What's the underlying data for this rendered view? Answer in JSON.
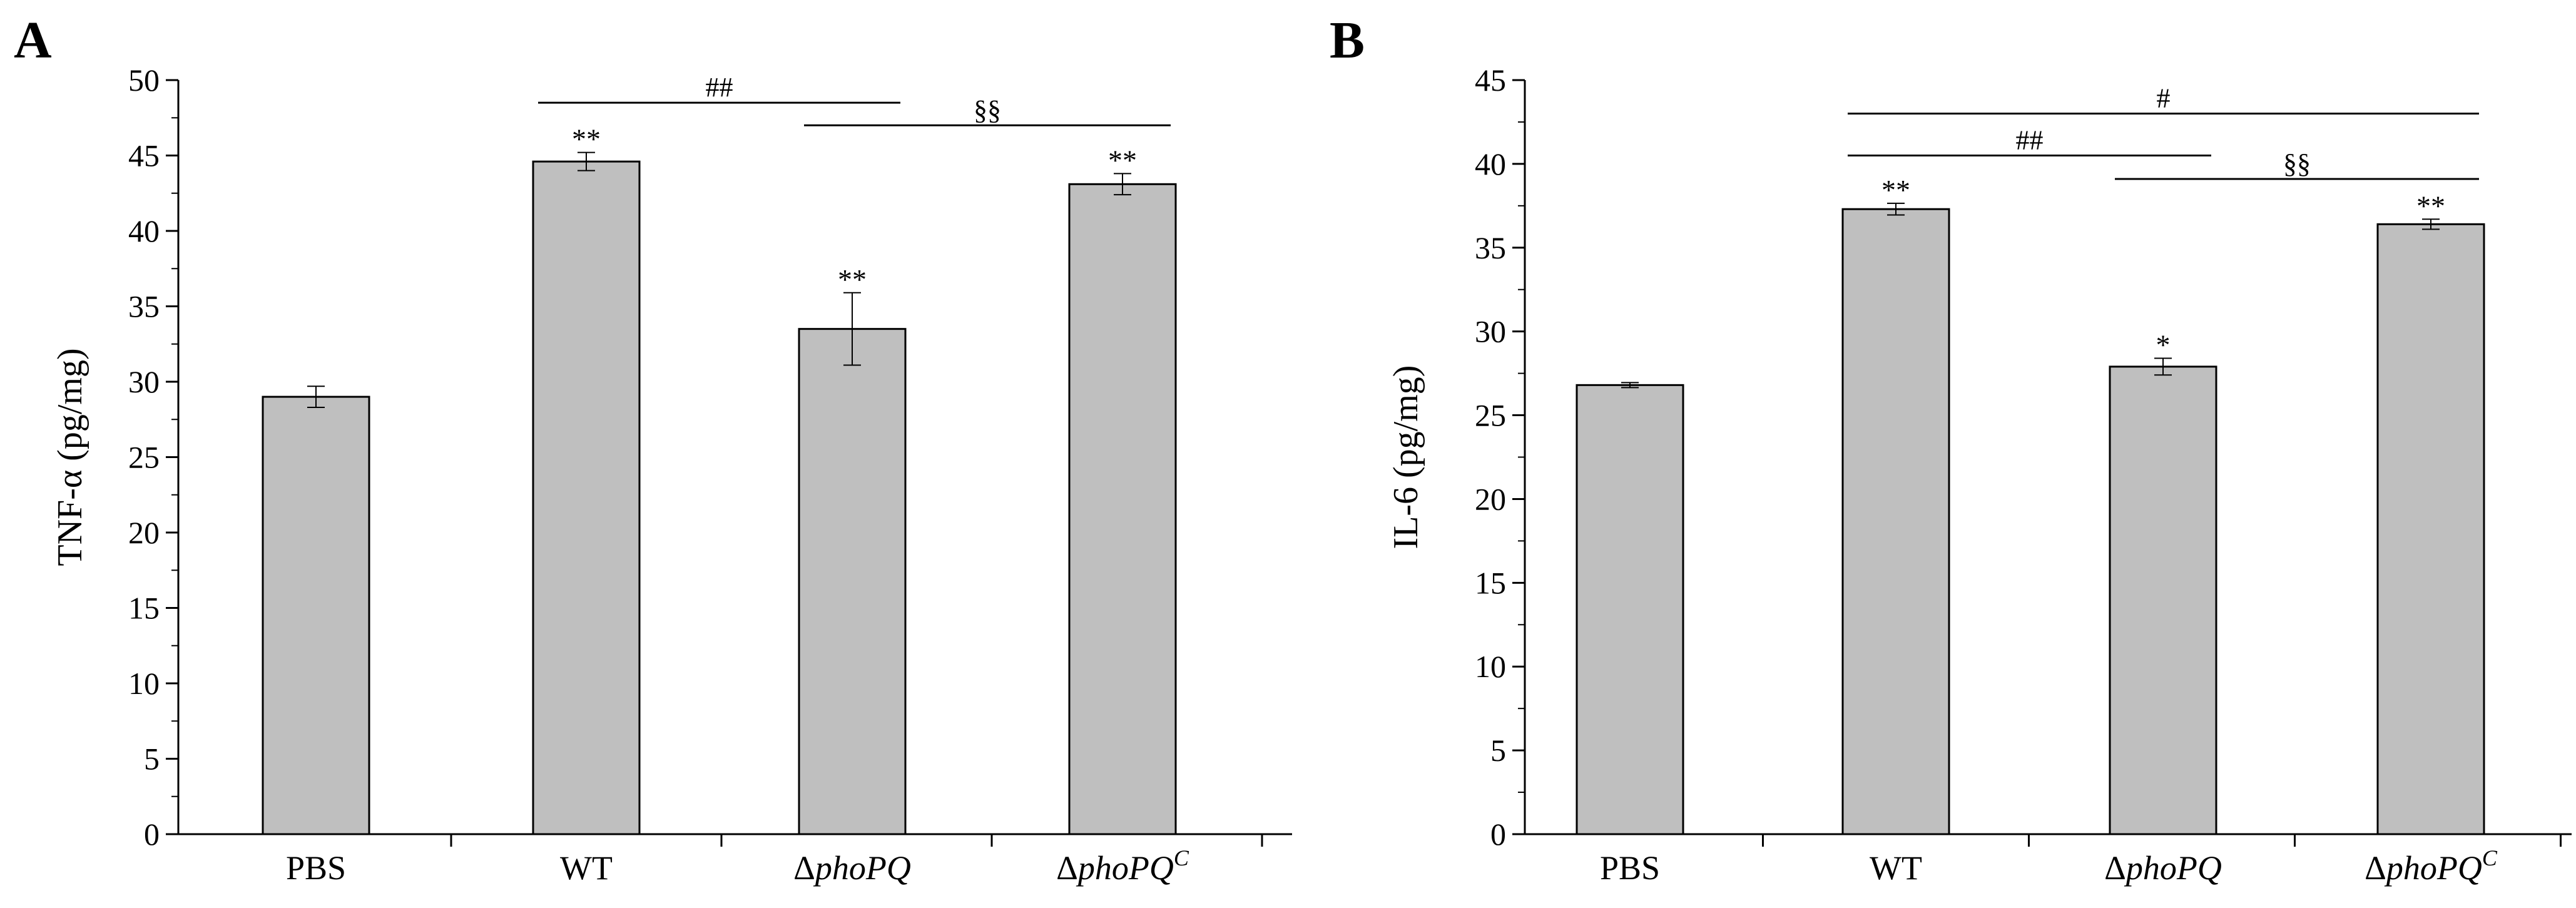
{
  "chart_data": [
    {
      "type": "bar",
      "panel": "A",
      "title": "",
      "xlabel": "",
      "ylabel": "TNF-α (pg/mg)",
      "ylim": [
        0,
        50
      ],
      "yticks": [
        0,
        5,
        10,
        15,
        20,
        25,
        30,
        35,
        40,
        45,
        50
      ],
      "categories": [
        {
          "main": "PBS",
          "prefix": "",
          "italic": "",
          "sup": ""
        },
        {
          "main": "WT",
          "prefix": "",
          "italic": "",
          "sup": ""
        },
        {
          "main": "",
          "prefix": "Δ",
          "italic": "phoPQ",
          "sup": ""
        },
        {
          "main": "",
          "prefix": "Δ",
          "italic": "phoPQ",
          "sup": "C"
        }
      ],
      "values": [
        29.0,
        44.6,
        33.5,
        43.1
      ],
      "errors": [
        0.7,
        0.6,
        2.4,
        0.7
      ],
      "bar_color": "#bfbfbf",
      "markers": [
        "",
        "**",
        "**",
        "**"
      ],
      "comparisons": [
        {
          "from": 1,
          "to": 2,
          "label": "##",
          "y": 48.5
        },
        {
          "from": 2,
          "to": 3,
          "label": "§§",
          "y": 47.0
        }
      ]
    },
    {
      "type": "bar",
      "panel": "B",
      "title": "",
      "xlabel": "",
      "ylabel": "IL-6 (pg/mg)",
      "ylim": [
        0,
        45
      ],
      "yticks": [
        0,
        5,
        10,
        15,
        20,
        25,
        30,
        35,
        40,
        45
      ],
      "categories": [
        {
          "main": "PBS",
          "prefix": "",
          "italic": "",
          "sup": ""
        },
        {
          "main": "WT",
          "prefix": "",
          "italic": "",
          "sup": ""
        },
        {
          "main": "",
          "prefix": "Δ",
          "italic": "phoPQ",
          "sup": ""
        },
        {
          "main": "",
          "prefix": "Δ",
          "italic": "phoPQ",
          "sup": "C"
        }
      ],
      "values": [
        26.8,
        37.3,
        27.9,
        36.4
      ],
      "errors": [
        0.15,
        0.35,
        0.5,
        0.3
      ],
      "bar_color": "#bfbfbf",
      "markers": [
        "",
        "**",
        "*",
        "**"
      ],
      "comparisons": [
        {
          "from": 1,
          "to": 3,
          "label": "#",
          "y": 43.0
        },
        {
          "from": 1,
          "to": 2,
          "label": "##",
          "y": 40.5
        },
        {
          "from": 2,
          "to": 3,
          "label": "§§",
          "y": 39.1
        }
      ]
    }
  ]
}
